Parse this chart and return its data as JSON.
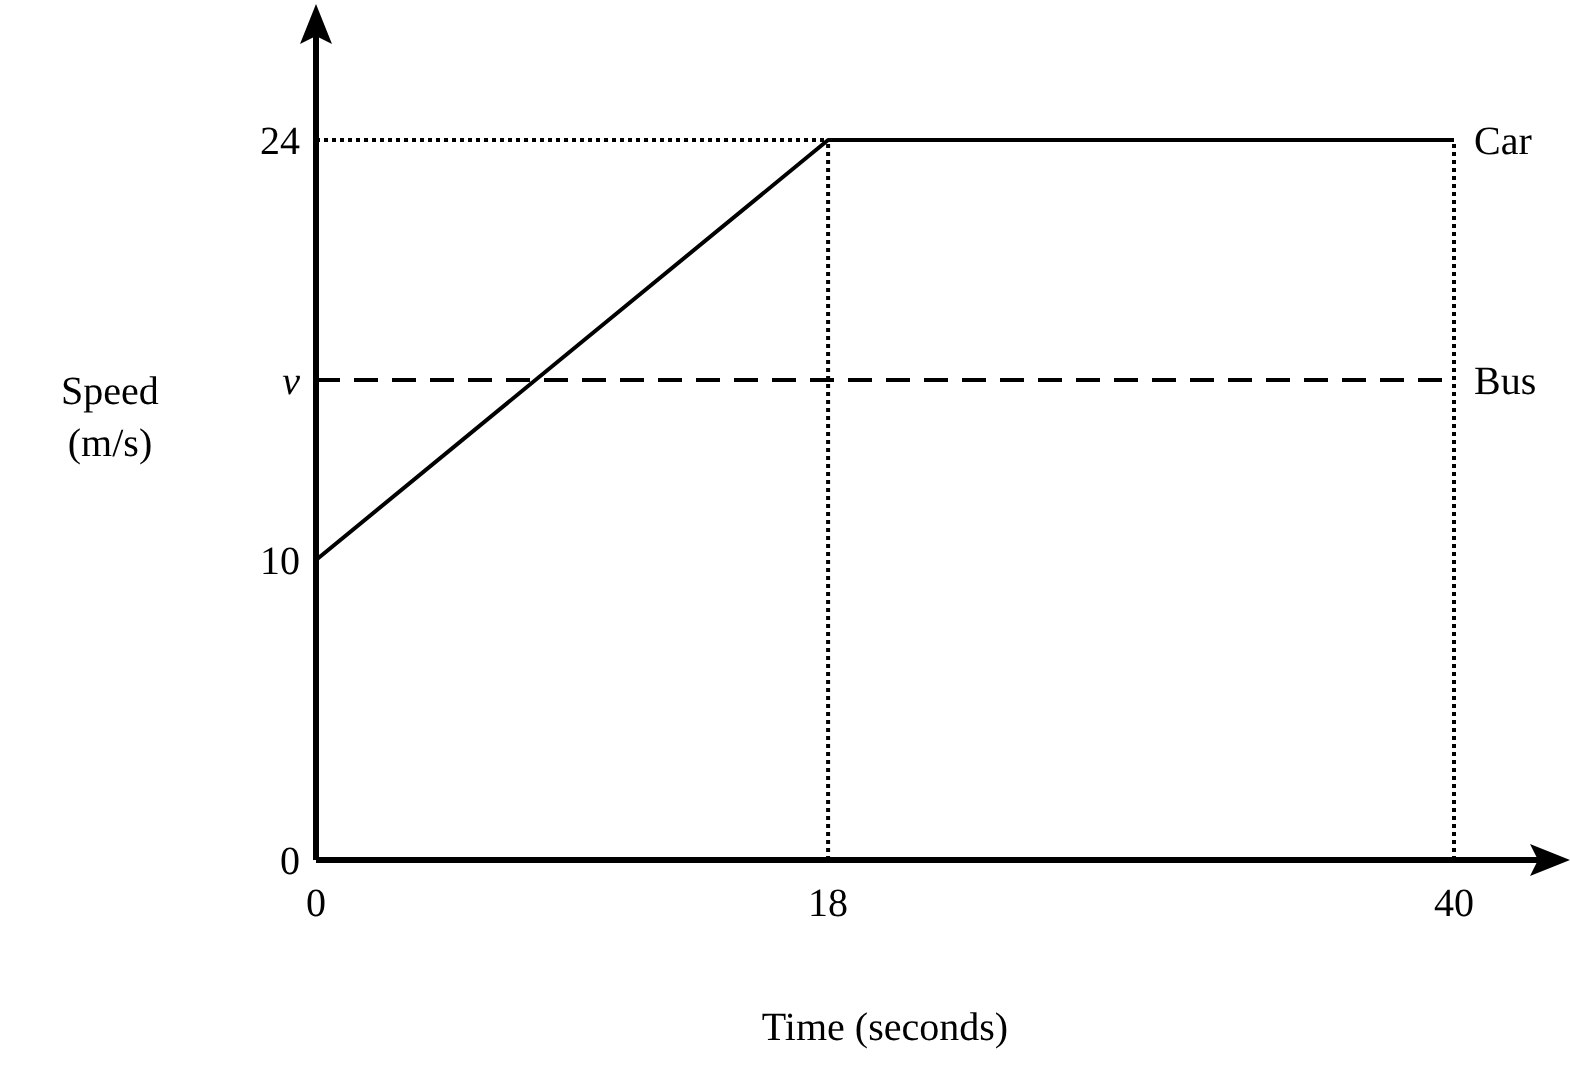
{
  "chart_data": {
    "type": "line",
    "xlabel": "Time (seconds)",
    "ylabel": "Speed (m/s)",
    "xlim": [
      0,
      40
    ],
    "ylim": [
      0,
      24
    ],
    "xticks": [
      0,
      18,
      40
    ],
    "yticks": [
      0,
      10,
      {
        "value": 16,
        "label": "v"
      },
      24
    ],
    "legend": false,
    "grid": false,
    "marker": "none",
    "series": [
      {
        "name": "Car",
        "color": "#000000",
        "x": [
          0,
          18,
          40
        ],
        "values": [
          10,
          24,
          24
        ],
        "line_style": "solid"
      },
      {
        "name": "Bus",
        "color": "#000000",
        "x": [
          0,
          40
        ],
        "values": [
          16,
          16
        ],
        "line_style": "dashed"
      }
    ],
    "ref_lines": [
      {
        "axis": "y",
        "value": 24,
        "color": "#000000",
        "line_style": "dotted"
      },
      {
        "axis": "x",
        "value": 18,
        "color": "#000000",
        "line_style": "dotted"
      },
      {
        "axis": "x",
        "value": 40,
        "color": "#000000",
        "line_style": "dotted"
      }
    ]
  }
}
